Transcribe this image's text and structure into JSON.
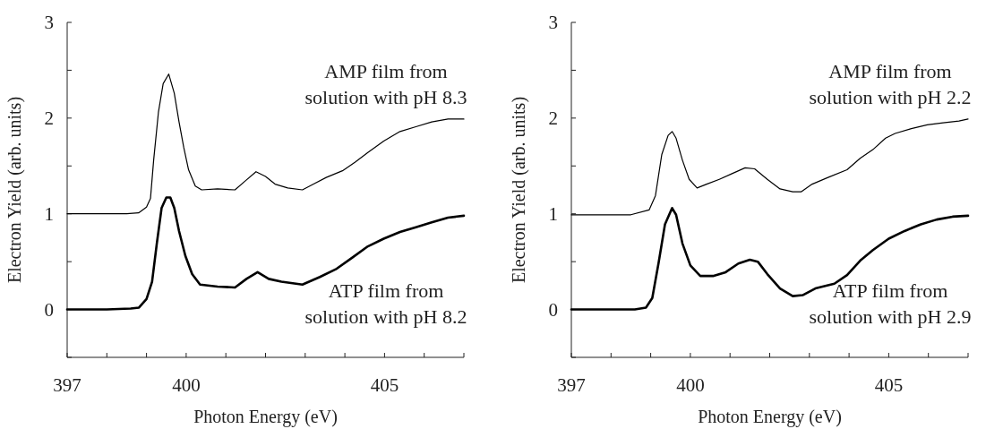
{
  "chart_data": [
    {
      "type": "line",
      "xlabel": "Photon Energy (eV)",
      "ylabel": "Electron Yield (arb. units)",
      "xlim": [
        397,
        407
      ],
      "ylim": [
        -0.5,
        3
      ],
      "xticks": [
        397,
        {
          "value": 398,
          "label": null
        },
        {
          "value": 399,
          "label": null
        },
        400,
        {
          "value": 401,
          "label": null
        },
        {
          "value": 402,
          "label": null
        },
        {
          "value": 403,
          "label": null
        },
        {
          "value": 404,
          "label": null
        },
        405,
        {
          "value": 406,
          "label": null
        },
        {
          "value": 407,
          "label": null
        }
      ],
      "yticks": [
        {
          "value": -0.5,
          "label": null
        },
        0,
        {
          "value": 0.5,
          "label": null
        },
        1,
        {
          "value": 1.5,
          "label": null
        },
        2,
        {
          "value": 2.5,
          "label": null
        },
        3
      ],
      "grid": false,
      "marker": "none",
      "line_style": "solid",
      "series": [
        {
          "name": "AMP film from solution with pH 8.3",
          "color": "#000000",
          "x": [
            397,
            398,
            398.5,
            398.8,
            399.0,
            399.1,
            399.18,
            399.3,
            399.42,
            399.56,
            399.7,
            399.82,
            399.94,
            400.06,
            400.23,
            400.39,
            400.79,
            401.23,
            401.48,
            401.76,
            402.0,
            402.24,
            402.56,
            402.93,
            403.21,
            403.53,
            403.94,
            404.26,
            404.58,
            404.98,
            405.39,
            405.79,
            406.19,
            406.6,
            407
          ],
          "values": [
            1.0,
            1.0,
            1.0,
            1.01,
            1.07,
            1.16,
            1.56,
            2.06,
            2.36,
            2.46,
            2.26,
            1.96,
            1.69,
            1.46,
            1.29,
            1.25,
            1.26,
            1.25,
            1.34,
            1.44,
            1.39,
            1.31,
            1.27,
            1.25,
            1.31,
            1.38,
            1.45,
            1.54,
            1.64,
            1.76,
            1.86,
            1.91,
            1.96,
            1.99,
            1.99
          ]
        },
        {
          "name": "ATP film from solution with pH 8.2",
          "color": "#000000",
          "x": [
            397,
            398,
            398.6,
            398.81,
            399.0,
            399.14,
            399.26,
            399.38,
            399.5,
            399.6,
            399.7,
            399.82,
            399.98,
            400.15,
            400.35,
            400.79,
            401.23,
            401.52,
            401.8,
            402.08,
            402.4,
            402.93,
            403.37,
            403.77,
            404.18,
            404.58,
            404.98,
            405.39,
            405.79,
            406.19,
            406.6,
            407
          ],
          "values": [
            0.0,
            0.0,
            0.01,
            0.02,
            0.11,
            0.29,
            0.69,
            1.06,
            1.17,
            1.17,
            1.06,
            0.82,
            0.56,
            0.37,
            0.26,
            0.24,
            0.23,
            0.32,
            0.39,
            0.32,
            0.29,
            0.26,
            0.34,
            0.42,
            0.54,
            0.66,
            0.74,
            0.81,
            0.86,
            0.91,
            0.96,
            0.98
          ]
        }
      ]
    },
    {
      "type": "line",
      "xlabel": "Photon Energy (eV)",
      "ylabel": "Electron Yield (arb. units)",
      "xlim": [
        397,
        407
      ],
      "ylim": [
        -0.5,
        3
      ],
      "xticks": [
        397,
        {
          "value": 398,
          "label": null
        },
        {
          "value": 399,
          "label": null
        },
        400,
        {
          "value": 401,
          "label": null
        },
        {
          "value": 402,
          "label": null
        },
        {
          "value": 403,
          "label": null
        },
        {
          "value": 404,
          "label": null
        },
        405,
        {
          "value": 406,
          "label": null
        },
        {
          "value": 407,
          "label": null
        }
      ],
      "yticks": [
        {
          "value": -0.5,
          "label": null
        },
        0,
        {
          "value": 0.5,
          "label": null
        },
        1,
        {
          "value": 1.5,
          "label": null
        },
        2,
        {
          "value": 2.5,
          "label": null
        },
        3
      ],
      "grid": false,
      "marker": "none",
      "line_style": "solid",
      "series": [
        {
          "name": "AMP film from solution with pH 2.2",
          "color": "#000000",
          "x": [
            397,
            398,
            398.5,
            398.96,
            399.12,
            399.28,
            399.44,
            399.54,
            399.64,
            399.8,
            399.97,
            400.17,
            400.41,
            400.73,
            401.05,
            401.38,
            401.62,
            401.94,
            402.26,
            402.58,
            402.79,
            403.07,
            403.47,
            403.95,
            404.28,
            404.6,
            404.92,
            405.16,
            405.57,
            405.97,
            406.37,
            406.77,
            407
          ],
          "values": [
            0.99,
            0.99,
            0.99,
            1.04,
            1.19,
            1.62,
            1.82,
            1.86,
            1.79,
            1.56,
            1.36,
            1.27,
            1.31,
            1.36,
            1.42,
            1.48,
            1.47,
            1.36,
            1.26,
            1.23,
            1.23,
            1.31,
            1.38,
            1.46,
            1.58,
            1.67,
            1.79,
            1.84,
            1.89,
            1.93,
            1.95,
            1.97,
            1.99
          ]
        },
        {
          "name": "ATP film from solution with pH 2.9",
          "color": "#000000",
          "x": [
            397,
            398,
            398.6,
            398.88,
            399.04,
            399.2,
            399.36,
            399.54,
            399.64,
            399.8,
            400.0,
            400.25,
            400.57,
            400.89,
            401.21,
            401.5,
            401.7,
            401.94,
            402.26,
            402.58,
            402.83,
            403.15,
            403.63,
            403.95,
            404.28,
            404.6,
            405.0,
            405.4,
            405.81,
            406.21,
            406.61,
            407
          ],
          "values": [
            0.0,
            0.0,
            0.0,
            0.02,
            0.12,
            0.49,
            0.89,
            1.06,
            0.99,
            0.69,
            0.46,
            0.35,
            0.35,
            0.39,
            0.48,
            0.52,
            0.5,
            0.37,
            0.22,
            0.14,
            0.15,
            0.22,
            0.27,
            0.36,
            0.51,
            0.62,
            0.74,
            0.82,
            0.89,
            0.94,
            0.97,
            0.98
          ]
        }
      ]
    }
  ]
}
